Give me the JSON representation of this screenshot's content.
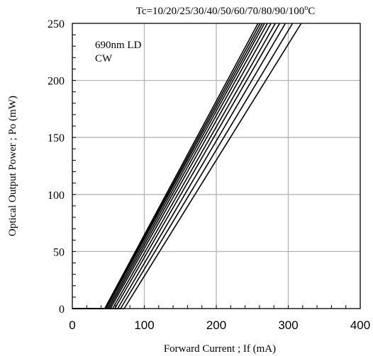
{
  "chart_data": {
    "type": "line",
    "title_prefix": "Tc=10/20/25/30/40/50/60/70/80/90/100",
    "title_super": "o",
    "title_suffix": "C",
    "annotation_lines": [
      "690nm LD",
      "CW"
    ],
    "xlabel": "Forward Current ; If  (mA)",
    "ylabel": "Optical Output Power ; Po  (mW)",
    "xlim": [
      0,
      400
    ],
    "ylim": [
      0,
      250
    ],
    "x_major_ticks": [
      0,
      100,
      200,
      300,
      400
    ],
    "x_tick_labels": [
      "0",
      "100",
      "200",
      "300",
      "400"
    ],
    "x_minor_step": 20,
    "y_major_ticks": [
      0,
      50,
      100,
      150,
      200,
      250
    ],
    "y_tick_labels": [
      "0",
      "50",
      "100",
      "150",
      "200",
      "250"
    ],
    "y_minor_step": 10,
    "grid": true,
    "line_color": "#000000",
    "grid_color": "#b4b4b4",
    "series": [
      {
        "x": [
          0,
          45,
          258
        ],
        "y": [
          0,
          0,
          250
        ]
      },
      {
        "x": [
          0,
          46,
          261
        ],
        "y": [
          0,
          0,
          250
        ]
      },
      {
        "x": [
          0,
          47,
          264
        ],
        "y": [
          0,
          0,
          250
        ]
      },
      {
        "x": [
          0,
          49,
          267
        ],
        "y": [
          0,
          0,
          250
        ]
      },
      {
        "x": [
          0,
          51,
          271
        ],
        "y": [
          0,
          0,
          250
        ]
      },
      {
        "x": [
          0,
          53,
          276
        ],
        "y": [
          0,
          0,
          250
        ]
      },
      {
        "x": [
          0,
          56,
          282
        ],
        "y": [
          0,
          0,
          250
        ]
      },
      {
        "x": [
          0,
          59,
          288
        ],
        "y": [
          0,
          0,
          250
        ]
      },
      {
        "x": [
          0,
          63,
          296
        ],
        "y": [
          0,
          0,
          250
        ]
      },
      {
        "x": [
          0,
          67,
          306
        ],
        "y": [
          0,
          0,
          250
        ]
      },
      {
        "x": [
          0,
          72,
          318
        ],
        "y": [
          0,
          0,
          250
        ]
      }
    ]
  }
}
